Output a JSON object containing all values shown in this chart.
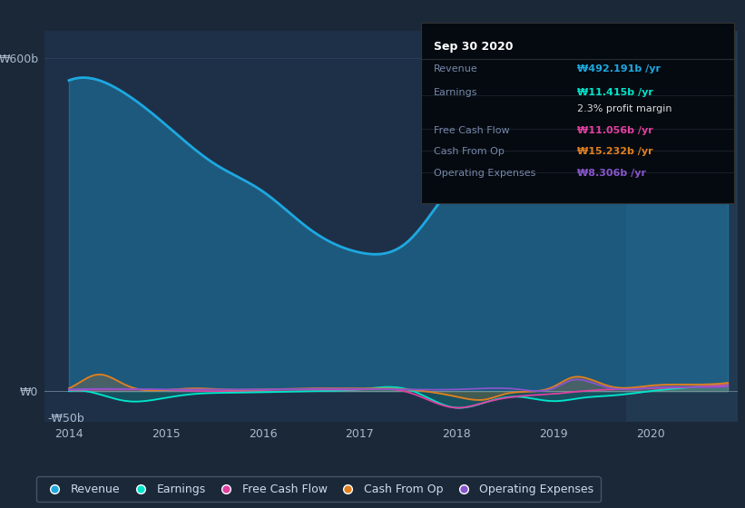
{
  "bg_color": "#1b2838",
  "plot_bg_color": "#1e3048",
  "plot_bg_highlight": "#253d57",
  "ylabel_600": "₩600b",
  "ylabel_0": "₩0",
  "ylabel_neg50": "-₩50b",
  "x_ticks": [
    2014,
    2015,
    2016,
    2017,
    2018,
    2019,
    2020
  ],
  "revenue_color": "#1da8e0",
  "earnings_color": "#00e5cc",
  "fcf_color": "#e040a0",
  "cashfromop_color": "#e08020",
  "opex_color": "#8855cc",
  "legend_items": [
    "Revenue",
    "Earnings",
    "Free Cash Flow",
    "Cash From Op",
    "Operating Expenses"
  ],
  "legend_colors": [
    "#1da8e0",
    "#00e5cc",
    "#e040a0",
    "#e08020",
    "#8855cc"
  ],
  "info_box": {
    "title": "Sep 30 2020",
    "rows": [
      {
        "label": "Revenue",
        "value": "₩492.191b /yr",
        "color": "#1da8e0",
        "bold_value": true
      },
      {
        "label": "Earnings",
        "value": "₩11.415b /yr",
        "color": "#00e5cc",
        "bold_value": true
      },
      {
        "label": "",
        "value": "2.3% profit margin",
        "color": "#dddddd",
        "bold_value": false
      },
      {
        "label": "Free Cash Flow",
        "value": "₩11.056b /yr",
        "color": "#e040a0",
        "bold_value": true
      },
      {
        "label": "Cash From Op",
        "value": "₩15.232b /yr",
        "color": "#e08020",
        "bold_value": true
      },
      {
        "label": "Operating Expenses",
        "value": "₩8.306b /yr",
        "color": "#8855cc",
        "bold_value": true
      }
    ]
  },
  "ylim": [
    -55,
    650
  ],
  "xlim_start": 2013.75,
  "xlim_end": 2020.9,
  "highlight_start": 2019.75,
  "revenue_x": [
    2014.0,
    2014.15,
    2014.5,
    2015.0,
    2015.5,
    2016.0,
    2016.5,
    2017.0,
    2017.5,
    2018.0,
    2018.3,
    2018.6,
    2019.0,
    2019.5,
    2020.0,
    2020.5,
    2020.8
  ],
  "revenue_y": [
    560,
    565,
    545,
    480,
    410,
    360,
    290,
    250,
    270,
    380,
    420,
    430,
    420,
    410,
    445,
    460,
    492
  ],
  "earnings_x": [
    2014.0,
    2014.3,
    2014.6,
    2015.0,
    2015.3,
    2015.6,
    2016.0,
    2016.5,
    2017.0,
    2017.5,
    2018.0,
    2018.3,
    2018.6,
    2019.0,
    2019.3,
    2019.6,
    2020.0,
    2020.5,
    2020.8
  ],
  "earnings_y": [
    0,
    -5,
    -18,
    -12,
    -5,
    -3,
    -2,
    0,
    3,
    3,
    -30,
    -20,
    -10,
    -18,
    -12,
    -8,
    0,
    8,
    11
  ],
  "fcf_x": [
    2014.0,
    2014.5,
    2015.0,
    2015.5,
    2016.0,
    2016.5,
    2017.0,
    2017.5,
    2018.0,
    2018.3,
    2018.6,
    2019.0,
    2019.3,
    2019.6,
    2020.0,
    2020.5,
    2020.8
  ],
  "fcf_y": [
    2,
    3,
    2,
    0,
    2,
    3,
    3,
    -2,
    -30,
    -20,
    -10,
    -5,
    0,
    3,
    5,
    8,
    11
  ],
  "cashop_x": [
    2014.0,
    2014.15,
    2014.3,
    2014.6,
    2015.0,
    2015.3,
    2015.6,
    2016.0,
    2016.5,
    2017.0,
    2017.5,
    2018.0,
    2018.3,
    2018.5,
    2019.0,
    2019.2,
    2019.4,
    2019.6,
    2020.0,
    2020.5,
    2020.8
  ],
  "cashop_y": [
    5,
    20,
    30,
    10,
    2,
    5,
    3,
    3,
    5,
    5,
    3,
    -10,
    -15,
    -5,
    8,
    25,
    20,
    8,
    10,
    12,
    15
  ],
  "opex_x": [
    2014.0,
    2014.5,
    2015.0,
    2015.5,
    2016.0,
    2016.5,
    2017.0,
    2017.5,
    2018.0,
    2018.3,
    2018.6,
    2019.0,
    2019.2,
    2019.4,
    2019.6,
    2020.0,
    2020.5,
    2020.8
  ],
  "opex_y": [
    3,
    4,
    3,
    3,
    3,
    4,
    4,
    3,
    3,
    5,
    4,
    5,
    20,
    15,
    5,
    6,
    7,
    8
  ]
}
